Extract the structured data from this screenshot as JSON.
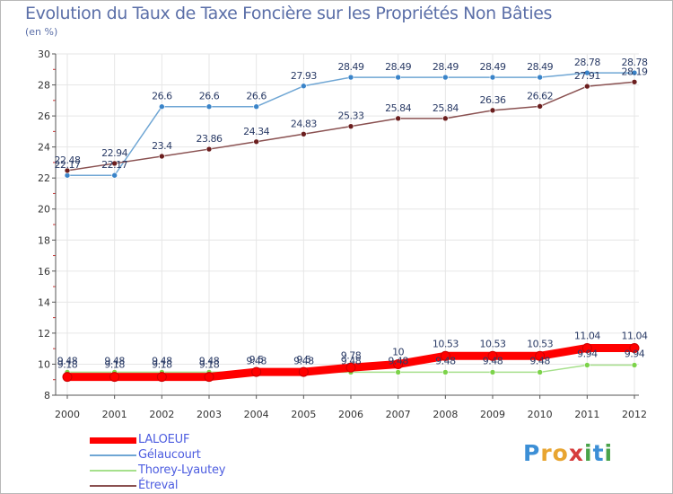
{
  "header": {
    "title": "Evolution du Taux de Taxe Foncière sur les Propriétés Non Bâties",
    "unit": "(en %)"
  },
  "chart_data": {
    "type": "line",
    "title": "Evolution du Taux de Taxe Foncière sur les Propriétés Non Bâties",
    "ylabel": "(en %)",
    "xlabel": "",
    "ylim": [
      8,
      30
    ],
    "yticks": [
      8,
      10,
      12,
      14,
      16,
      18,
      20,
      22,
      24,
      26,
      28,
      30
    ],
    "categories": [
      "2000",
      "2001",
      "2002",
      "2003",
      "2004",
      "2005",
      "2006",
      "2007",
      "2008",
      "2009",
      "2010",
      "2011",
      "2012"
    ],
    "series": [
      {
        "name": "LALOEUF",
        "color": "#ff0000",
        "marker": "#ff0000",
        "values": [
          9.18,
          9.18,
          9.18,
          9.18,
          9.5,
          9.5,
          9.78,
          10,
          10.53,
          10.53,
          10.53,
          11.04,
          11.04
        ],
        "labels": [
          "9.18",
          "9.18",
          "9.18",
          "9.18",
          "9.5",
          "9.5",
          "9.78",
          "10",
          "10.53",
          "10.53",
          "10.53",
          "11.04",
          "11.04"
        ]
      },
      {
        "name": "Gélaucourt",
        "color": "#6fa6d4",
        "marker": "#3a84c9",
        "values": [
          22.17,
          22.17,
          26.6,
          26.6,
          26.6,
          27.93,
          28.49,
          28.49,
          28.49,
          28.49,
          28.49,
          28.78,
          28.78
        ],
        "labels": [
          "22.17",
          "22.17",
          "26.6",
          "26.6",
          "26.6",
          "27.93",
          "28.49",
          "28.49",
          "28.49",
          "28.49",
          "28.49",
          "28.78",
          "28.78"
        ]
      },
      {
        "name": "Thorey-Lyautey",
        "color": "#a6e08c",
        "marker": "#7cd34a",
        "values": [
          9.48,
          9.48,
          9.48,
          9.48,
          9.48,
          9.48,
          9.48,
          9.48,
          9.48,
          9.48,
          9.48,
          9.94,
          9.94
        ],
        "labels": [
          "9.48",
          "9.48",
          "9.48",
          "9.48",
          "9.48",
          "9.48",
          "9.48",
          "9.48",
          "9.48",
          "9.48",
          "9.48",
          "9.94",
          "9.94"
        ]
      },
      {
        "name": "Étreval",
        "color": "#8a5151",
        "marker": "#6b1e1e",
        "values": [
          22.48,
          22.94,
          23.4,
          23.86,
          24.34,
          24.83,
          25.33,
          25.84,
          25.84,
          26.36,
          26.62,
          27.91,
          28.19
        ],
        "labels": [
          "22.48",
          "22.94",
          "23.4",
          "23.86",
          "24.34",
          "24.83",
          "25.33",
          "25.84",
          "25.84",
          "26.36",
          "26.62",
          "27.91",
          "28.19"
        ]
      }
    ]
  },
  "legend": [
    {
      "label": "LALOEUF",
      "color": "#ff0000"
    },
    {
      "label": "Gélaucourt",
      "color": "#6fa6d4"
    },
    {
      "label": "Thorey-Lyautey",
      "color": "#a6e08c"
    },
    {
      "label": "Étreval",
      "color": "#8a5151"
    }
  ],
  "logo": {
    "letters": [
      "P",
      "r",
      "o",
      "x",
      "i",
      "t",
      "i"
    ],
    "colors": [
      "#3c8fd6",
      "#e8a531",
      "#e8a531",
      "#d63c3c",
      "#4aa34a",
      "#3c8fd6",
      "#4aa34a"
    ]
  }
}
